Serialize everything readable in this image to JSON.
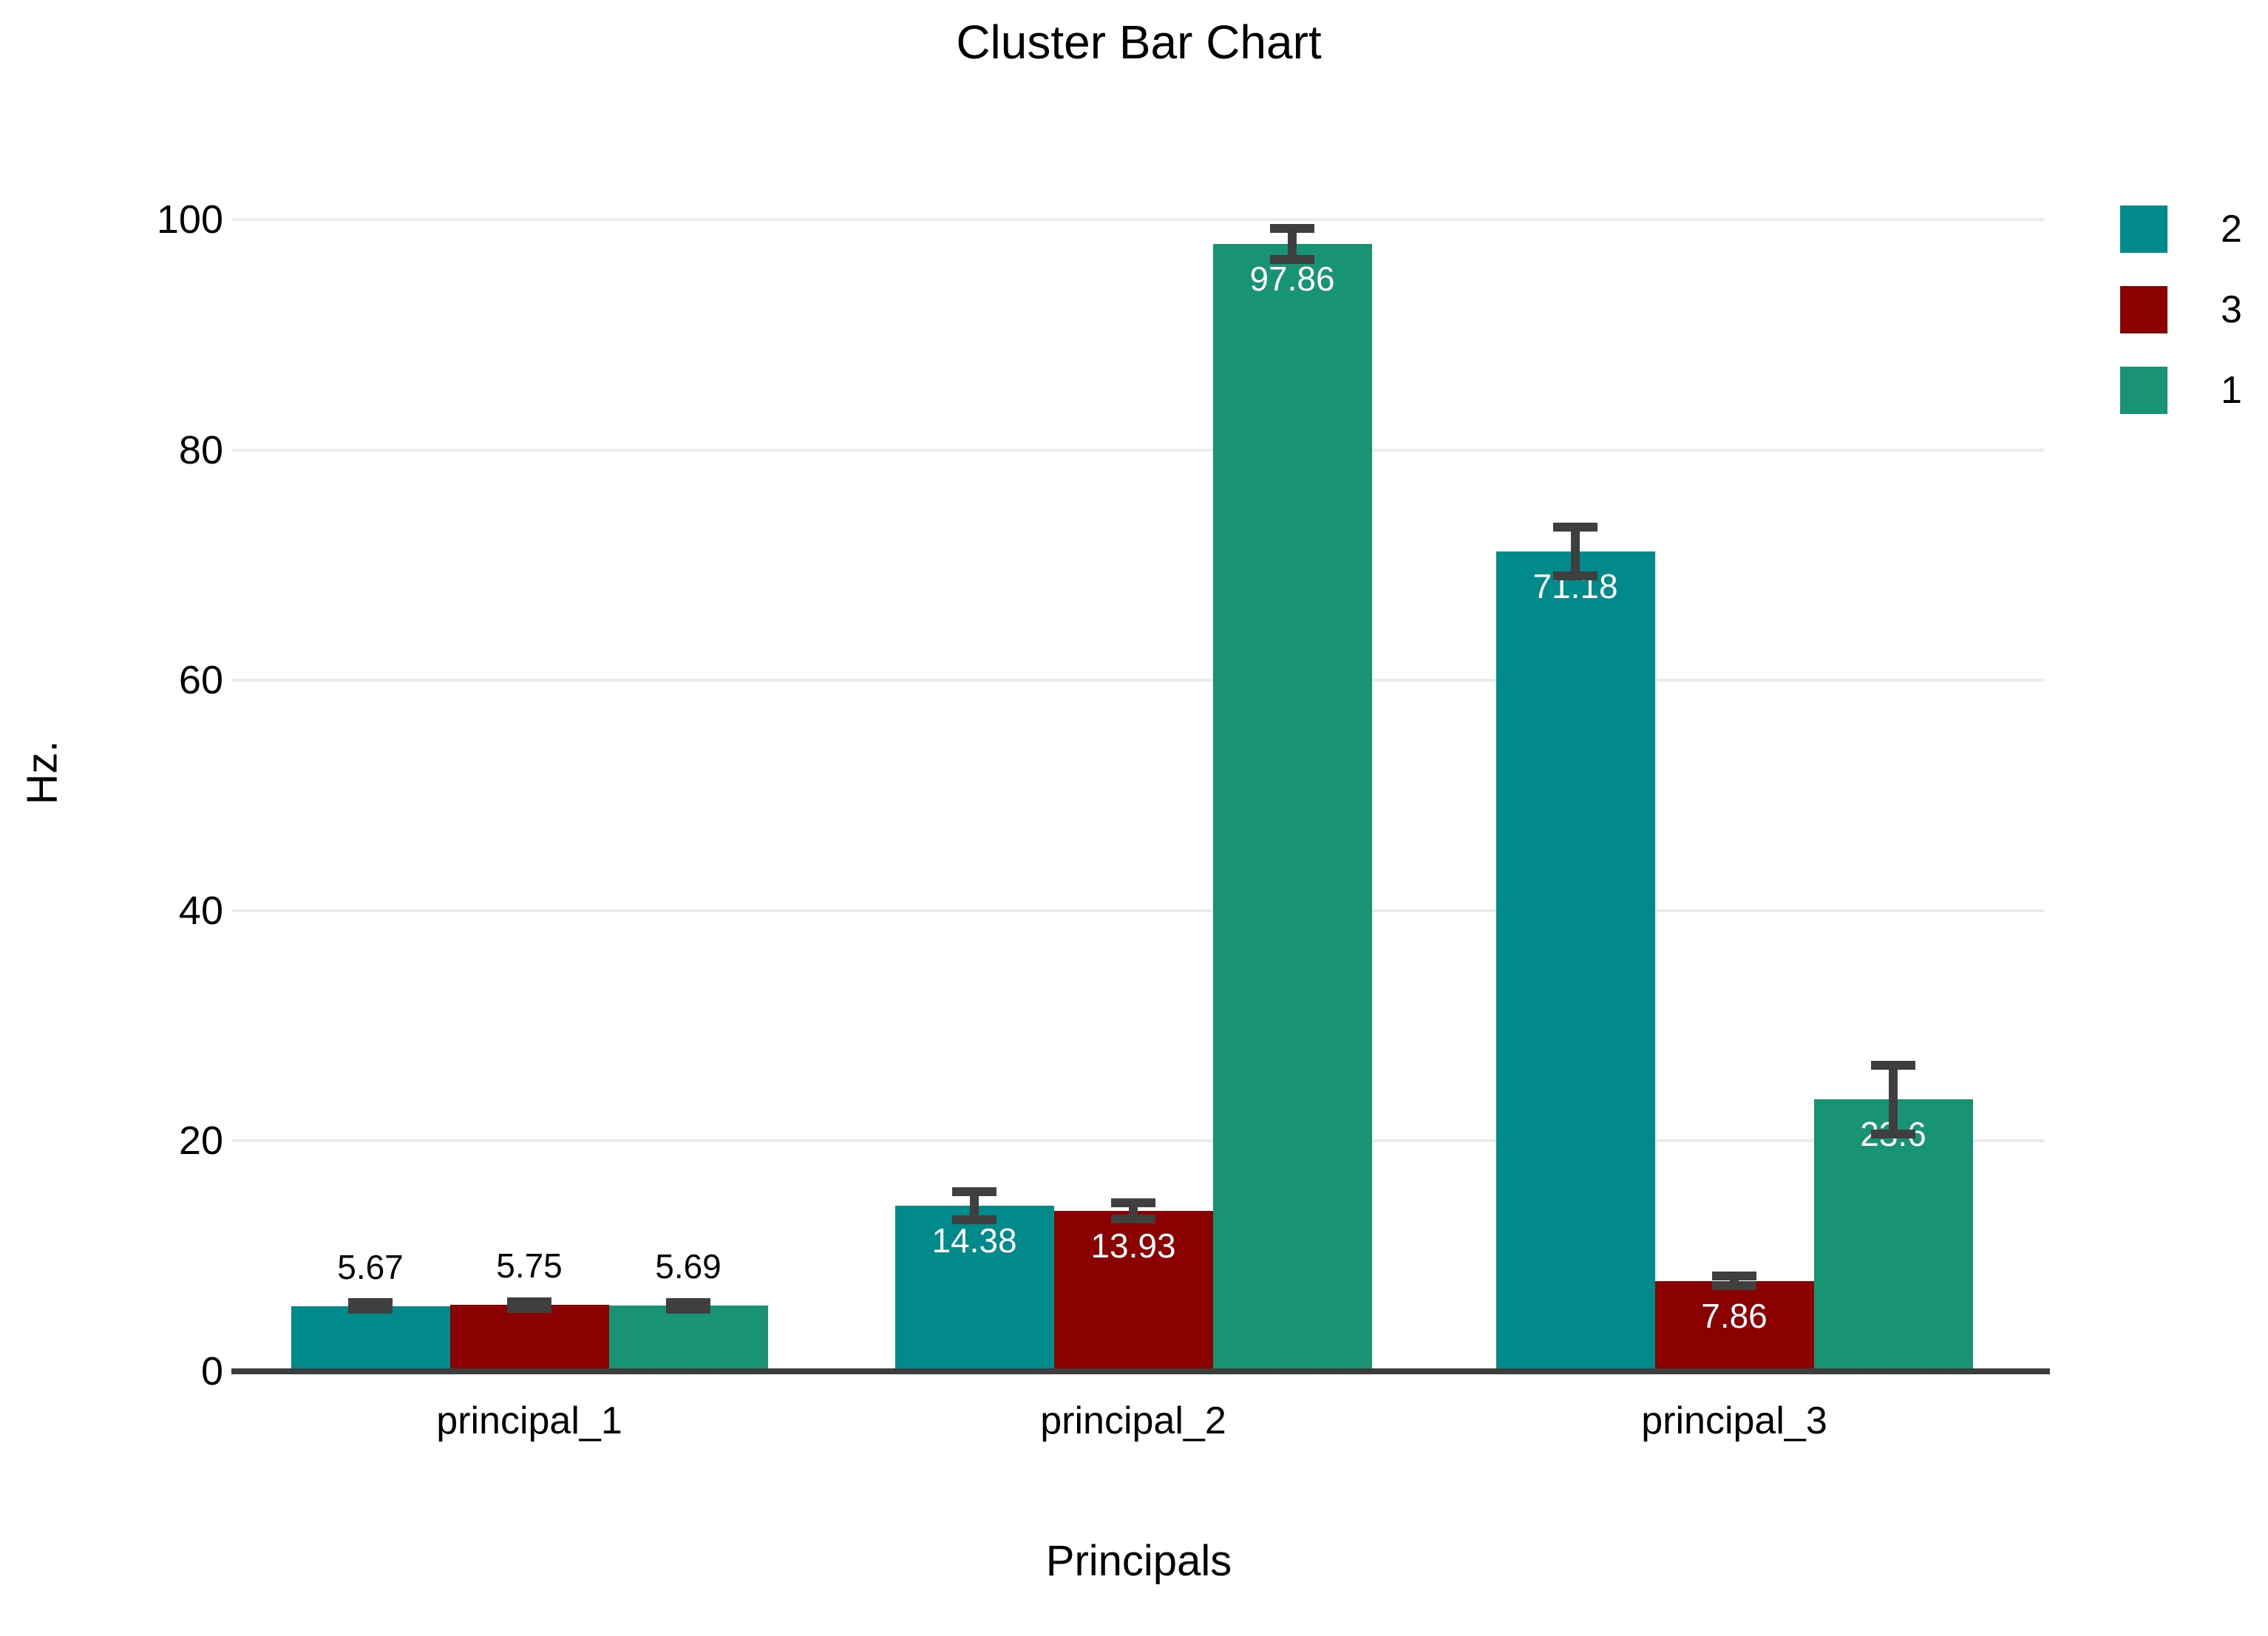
{
  "chart_data": {
    "type": "bar",
    "title": "Cluster Bar Chart",
    "xlabel": "Principals",
    "ylabel": "Hz.",
    "categories": [
      "principal_1",
      "principal_2",
      "principal_3"
    ],
    "series": [
      {
        "name": "2",
        "color": "#008A8C",
        "values": [
          5.67,
          14.38,
          71.18
        ],
        "labels": [
          "5.67",
          "14.38",
          "71.18"
        ],
        "errors": [
          0.3,
          1.2,
          2.1
        ]
      },
      {
        "name": "3",
        "color": "#8B0000",
        "values": [
          5.75,
          13.93,
          7.86
        ],
        "labels": [
          "5.75",
          "13.93",
          "7.86"
        ],
        "errors": [
          0.3,
          0.7,
          0.4
        ]
      },
      {
        "name": "1",
        "color": "#189474",
        "values": [
          5.69,
          97.86,
          23.6
        ],
        "labels": [
          "5.69",
          "97.86",
          "23.6"
        ],
        "errors": [
          0.3,
          1.35,
          3.0
        ]
      }
    ],
    "ylim": [
      0,
      100
    ],
    "yticks": [
      0,
      20,
      40,
      60,
      80,
      100
    ],
    "grid": true,
    "legend_position": "top-right",
    "legend_entries": [
      "2",
      "3",
      "1"
    ],
    "label_inside_threshold": 7,
    "label_inside_color": "#FFFFFF",
    "label_outside_color": "#000000",
    "error_bar_color": "#3F3F3F",
    "axis_line_color": "#3D3D3D",
    "gridline_color": "#ECECEC"
  }
}
